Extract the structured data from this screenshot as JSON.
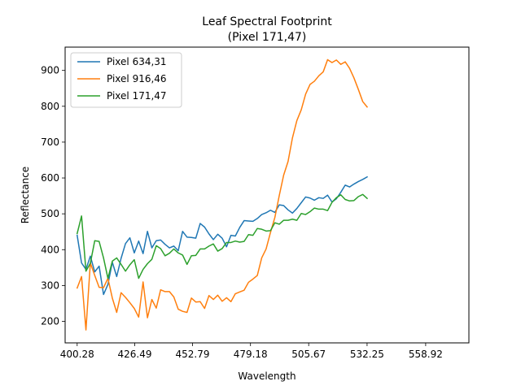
{
  "chart_data": {
    "type": "line",
    "title": "Leaf Spectral Footprint\n(Pixel 171,47)",
    "title_lines": [
      "Leaf Spectral Footprint",
      "(Pixel 171,47)"
    ],
    "xlabel": "Wavelength",
    "ylabel": "Reflectance",
    "xlim": [
      394.8,
      578.6
    ],
    "ylim": [
      140,
      965
    ],
    "x_ticks": [
      400.28,
      426.49,
      452.79,
      479.18,
      505.67,
      532.25,
      558.92
    ],
    "x_tick_labels": [
      "400.28",
      "426.49",
      "452.79",
      "479.18",
      "505.67",
      "532.25",
      "558.92"
    ],
    "y_ticks": [
      200,
      300,
      400,
      500,
      600,
      700,
      800,
      900
    ],
    "y_tick_labels": [
      "200",
      "300",
      "400",
      "500",
      "600",
      "700",
      "800",
      "900"
    ],
    "grid": false,
    "legend_position": "upper-left",
    "x_start": 400.28,
    "x_step": 2.0,
    "series": [
      {
        "name": "Pixel 634,31",
        "color": "#1f77b4",
        "values": [
          440,
          363,
          345,
          382,
          338,
          354,
          275,
          303,
          365,
          325,
          376,
          417,
          433,
          391,
          424,
          389,
          451,
          405,
          425,
          427,
          415,
          405,
          410,
          397,
          451,
          435,
          434,
          432,
          473,
          463,
          444,
          428,
          443,
          432,
          408,
          440,
          438,
          462,
          481,
          480,
          479,
          487,
          498,
          503,
          510,
          504,
          525,
          523,
          511,
          502,
          515,
          531,
          547,
          544,
          538,
          545,
          543,
          552,
          533,
          542,
          560,
          580,
          575,
          583,
          590,
          596,
          603
        ]
      },
      {
        "name": "Pixel 916,46",
        "color": "#ff7f0e",
        "values": [
          293,
          325,
          176,
          363,
          328,
          295,
          294,
          320,
          265,
          225,
          280,
          267,
          252,
          236,
          212,
          310,
          210,
          261,
          237,
          288,
          283,
          283,
          268,
          234,
          228,
          225,
          265,
          254,
          255,
          236,
          272,
          261,
          273,
          256,
          266,
          255,
          277,
          282,
          287,
          309,
          318,
          328,
          377,
          402,
          448,
          490,
          551,
          608,
          646,
          712,
          760,
          790,
          834,
          861,
          870,
          885,
          896,
          930,
          922,
          929,
          917,
          924,
          906,
          879,
          847,
          813,
          798
        ]
      },
      {
        "name": "Pixel 171,47",
        "color": "#2ca02c",
        "values": [
          445,
          494,
          340,
          362,
          425,
          423,
          377,
          320,
          368,
          377,
          359,
          340,
          358,
          372,
          320,
          345,
          361,
          373,
          411,
          403,
          383,
          390,
          402,
          391,
          385,
          359,
          383,
          384,
          402,
          402,
          410,
          416,
          396,
          403,
          420,
          420,
          424,
          421,
          423,
          442,
          440,
          459,
          457,
          452,
          453,
          475,
          471,
          482,
          482,
          485,
          482,
          501,
          498,
          506,
          516,
          513,
          513,
          509,
          532,
          545,
          553,
          540,
          536,
          537,
          548,
          554,
          543
        ]
      }
    ]
  }
}
